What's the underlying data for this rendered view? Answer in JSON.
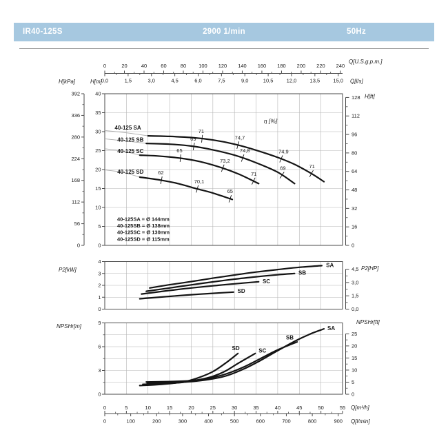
{
  "header": {
    "model": "IR40-125S",
    "speed": "2900 1/min",
    "frequency": "50Hz",
    "bar_color": "#a6c8e0",
    "text_color": "#ffffff"
  },
  "chart_data": [
    {
      "id": "head",
      "type": "line",
      "xlim_m3h": [
        0,
        55
      ],
      "ylim_m": [
        0,
        40
      ],
      "grid": "on",
      "annotation": {
        "text": "η [%]",
        "q": 36.8,
        "v": 32.7
      },
      "axes": {
        "top": [
          {
            "id": "gpm",
            "unit": "Q[U.S.g.p.m.]",
            "tick_values": [
              0,
              20,
              40,
              60,
              80,
              100,
              120,
              140,
              160,
              180,
              200,
              220,
              240
            ],
            "tick_labels": [
              "0",
              "20",
              "40",
              "60",
              "80",
              "100",
              "120",
              "140",
              "160",
              "180",
              "200",
              "220",
              "240"
            ]
          },
          {
            "id": "ls",
            "unit": "Q[l/s]",
            "tick_values": [
              0,
              1.5,
              3,
              4.5,
              6,
              7.5,
              9,
              10.5,
              12,
              13.5,
              15
            ],
            "tick_labels": [
              "0,0",
              "1,5",
              "3,0",
              "4,5",
              "6,0",
              "7,5",
              "9,0",
              "10,5",
              "12,0",
              "13,5",
              "15,0"
            ]
          }
        ],
        "left": [
          {
            "id": "kpa",
            "unit": "H[kPa]",
            "tick_values": [
              392,
              336,
              280,
              224,
              168,
              112,
              56,
              0
            ],
            "tick_labels": [
              "392",
              "336",
              "280",
              "224",
              "168",
              "112",
              "56",
              "0"
            ]
          },
          {
            "id": "hm",
            "unit": "H[m]",
            "tick_values": [
              40,
              35,
              30,
              25,
              20,
              15,
              10,
              5,
              0
            ],
            "tick_labels": [
              "40",
              "35",
              "30",
              "25",
              "20",
              "15",
              "10",
              "5",
              "0"
            ]
          }
        ],
        "right": [
          {
            "id": "hft",
            "unit": "H[ft]",
            "tick_values": [
              128,
              112,
              96,
              80,
              64,
              48,
              32,
              16,
              0
            ],
            "tick_labels": [
              "128",
              "112",
              "96",
              "80",
              "64",
              "48",
              "32",
              "16",
              "0"
            ]
          }
        ]
      },
      "series": [
        {
          "name": "40-125 SA",
          "name_label": {
            "q": 2.3,
            "v": 31.0
          },
          "lead_in": [
            [
              0,
              30.3
            ],
            [
              5,
              29.7
            ],
            [
              10,
              28.9
            ]
          ],
          "points": [
            [
              10,
              28.9
            ],
            [
              15,
              28.75
            ],
            [
              20,
              28.45
            ],
            [
              25,
              27.8
            ],
            [
              30,
              26.7
            ],
            [
              35,
              25.1
            ],
            [
              40,
              23.2
            ],
            [
              44,
              21.3
            ],
            [
              48,
              18.8
            ],
            [
              50.7,
              16.8
            ]
          ],
          "eff": [
            {
              "q": 22.5,
              "label": "71"
            },
            {
              "q": 30.8,
              "label": "74,7"
            },
            {
              "q": 40.8,
              "label": "74,9"
            },
            {
              "q": 47.8,
              "label": "71"
            }
          ]
        },
        {
          "name": "40-125 SB",
          "name_label": {
            "q": 2.9,
            "v": 27.8
          },
          "lead_in": [
            [
              0,
              28.1
            ],
            [
              5,
              27.5
            ],
            [
              9.6,
              26.9
            ]
          ],
          "points": [
            [
              9.6,
              26.9
            ],
            [
              15,
              26.7
            ],
            [
              20,
              26.2
            ],
            [
              25,
              25.2
            ],
            [
              30,
              23.8
            ],
            [
              35,
              21.8
            ],
            [
              40,
              19.3
            ],
            [
              43.9,
              16.3
            ]
          ],
          "eff": [
            {
              "q": 20.6,
              "label": "69"
            },
            {
              "q": 31.9,
              "label": "74,8"
            },
            {
              "q": 41.0,
              "label": "69"
            }
          ]
        },
        {
          "name": "40-125 SC",
          "name_label": {
            "q": 2.9,
            "v": 24.8
          },
          "lead_in": [
            [
              0,
              25.5
            ],
            [
              4,
              24.9
            ],
            [
              8.1,
              23.8
            ]
          ],
          "points": [
            [
              8.1,
              23.8
            ],
            [
              12,
              23.6
            ],
            [
              17.5,
              23.0
            ],
            [
              22,
              22.1
            ],
            [
              27,
              20.5
            ],
            [
              31,
              18.8
            ],
            [
              35.6,
              16.3
            ]
          ],
          "eff": [
            {
              "q": 17.5,
              "label": "65"
            },
            {
              "q": 27.3,
              "label": "73,2"
            },
            {
              "q": 34.4,
              "label": "71"
            }
          ]
        },
        {
          "name": "40-125 SD",
          "name_label": {
            "q": 2.9,
            "v": 19.4
          },
          "lead_in": [
            [
              0,
              19.9
            ],
            [
              4,
              19.3
            ],
            [
              8.1,
              18.0
            ]
          ],
          "points": [
            [
              8.1,
              18.0
            ],
            [
              13,
              17.2
            ],
            [
              17,
              16.3
            ],
            [
              21.4,
              14.9
            ],
            [
              25,
              13.8
            ],
            [
              29.5,
              12.1
            ]
          ],
          "eff": [
            {
              "q": 13.1,
              "label": "62"
            },
            {
              "q": 21.4,
              "label": "70,1"
            },
            {
              "q": 29.0,
              "label": "65"
            }
          ]
        }
      ],
      "legend": [
        "40-125SA = Ø 144mm",
        "40-125SB = Ø 138mm",
        "40-125SC = Ø 130mm",
        "40-125SD = Ø 115mm"
      ]
    },
    {
      "id": "power",
      "type": "line",
      "xlim_m3h": [
        0,
        55
      ],
      "ylim_kw": [
        0,
        4
      ],
      "grid": "on",
      "axes": {
        "left": [
          {
            "id": "kw",
            "unit": "P2[kW]",
            "tick_values": [
              4,
              3,
              2,
              1,
              0
            ],
            "tick_labels": [
              "4",
              "3",
              "2",
              "1",
              "0"
            ]
          }
        ],
        "right": [
          {
            "id": "hp",
            "unit": "P2[HP]",
            "tick_values": [
              4.5,
              3,
              1.5,
              0
            ],
            "tick_labels": [
              "4,5",
              "3,0",
              "1,5",
              "0,0"
            ]
          }
        ]
      },
      "series": [
        {
          "name": "SA",
          "name_label": {
            "q": 51.2,
            "v": 3.67,
            "anchor": "start"
          },
          "points": [
            [
              10.4,
              1.78
            ],
            [
              15,
              2.05
            ],
            [
              20,
              2.32
            ],
            [
              25,
              2.6
            ],
            [
              30,
              2.87
            ],
            [
              35,
              3.12
            ],
            [
              40,
              3.33
            ],
            [
              45,
              3.52
            ],
            [
              50.2,
              3.66
            ]
          ]
        },
        {
          "name": "SB",
          "name_label": {
            "q": 44.8,
            "v": 3.03,
            "anchor": "start"
          },
          "points": [
            [
              9.6,
              1.5
            ],
            [
              15,
              1.78
            ],
            [
              20,
              2.04
            ],
            [
              25,
              2.29
            ],
            [
              30,
              2.52
            ],
            [
              35,
              2.72
            ],
            [
              40,
              2.89
            ],
            [
              43.9,
              3.0
            ]
          ]
        },
        {
          "name": "SC",
          "name_label": {
            "q": 36.5,
            "v": 2.33,
            "anchor": "start"
          },
          "points": [
            [
              8.5,
              1.27
            ],
            [
              15,
              1.57
            ],
            [
              20,
              1.78
            ],
            [
              25,
              1.96
            ],
            [
              30,
              2.13
            ],
            [
              35.6,
              2.3
            ]
          ]
        },
        {
          "name": "SD",
          "name_label": {
            "q": 30.7,
            "v": 1.5,
            "anchor": "start"
          },
          "points": [
            [
              8.1,
              0.87
            ],
            [
              15,
              1.07
            ],
            [
              20,
              1.21
            ],
            [
              25,
              1.33
            ],
            [
              29.8,
              1.43
            ]
          ]
        }
      ]
    },
    {
      "id": "npsh",
      "type": "line",
      "xlim_m3h": [
        0,
        55
      ],
      "ylim_m": [
        0,
        9
      ],
      "grid": "on",
      "axes": {
        "left": [
          {
            "id": "nm",
            "unit": "NPSHr[m]",
            "tick_values": [
              9,
              6,
              3,
              0
            ],
            "tick_labels": [
              "9",
              "6",
              "3",
              "0"
            ]
          }
        ],
        "right": [
          {
            "id": "nft",
            "unit": "NPSHr[ft]",
            "tick_values": [
              25,
              20,
              15,
              10,
              5,
              0
            ],
            "tick_labels": [
              "25",
              "20",
              "15",
              "10",
              "5",
              "0"
            ]
          }
        ],
        "bottom": [
          {
            "id": "m3h",
            "unit": "Q[m³/h]",
            "tick_values": [
              0,
              5,
              10,
              15,
              20,
              25,
              30,
              35,
              40,
              45,
              50,
              55
            ],
            "tick_labels": [
              "0",
              "5",
              "10",
              "15",
              "20",
              "25",
              "30",
              "35",
              "40",
              "45",
              "50",
              "55"
            ]
          },
          {
            "id": "lmin",
            "unit": "Q[l/min]",
            "tick_values": [
              0,
              100,
              200,
              300,
              400,
              500,
              600,
              700,
              800,
              900
            ],
            "tick_labels": [
              "0",
              "100",
              "200",
              "300",
              "400",
              "500",
              "600",
              "700",
              "800",
              "900"
            ]
          }
        ]
      },
      "series": [
        {
          "name": "SA",
          "name_label": {
            "q": 51.5,
            "v": 8.3,
            "anchor": "start"
          },
          "points": [
            [
              9.8,
              1.4
            ],
            [
              15,
              1.45
            ],
            [
              20,
              1.6
            ],
            [
              24,
              1.85
            ],
            [
              28,
              2.3
            ],
            [
              32,
              3.15
            ],
            [
              36,
              4.25
            ],
            [
              40,
              5.5
            ],
            [
              44,
              6.7
            ],
            [
              47.5,
              7.6
            ],
            [
              50.7,
              8.25
            ]
          ]
        },
        {
          "name": "SB",
          "name_label": {
            "q": 42.8,
            "v": 7.15,
            "anchor": "middle"
          },
          "points": [
            [
              9.6,
              1.55
            ],
            [
              15,
              1.6
            ],
            [
              20,
              1.72
            ],
            [
              24,
              2.0
            ],
            [
              28,
              2.55
            ],
            [
              32,
              3.4
            ],
            [
              36,
              4.5
            ],
            [
              40,
              5.6
            ],
            [
              44.5,
              6.6
            ]
          ]
        },
        {
          "name": "SC",
          "name_label": {
            "q": 35.6,
            "v": 5.5,
            "anchor": "start"
          },
          "points": [
            [
              8.8,
              1.25
            ],
            [
              14,
              1.35
            ],
            [
              18,
              1.5
            ],
            [
              22,
              1.85
            ],
            [
              25,
              2.25
            ],
            [
              28,
              2.95
            ],
            [
              31,
              3.95
            ],
            [
              34.8,
              5.15
            ]
          ]
        },
        {
          "name": "SD",
          "name_label": {
            "q": 30.3,
            "v": 5.8,
            "anchor": "middle"
          },
          "points": [
            [
              8.1,
              1.1
            ],
            [
              12,
              1.2
            ],
            [
              16,
              1.4
            ],
            [
              19,
              1.65
            ],
            [
              22,
              2.15
            ],
            [
              25,
              2.85
            ],
            [
              28,
              3.95
            ],
            [
              30.8,
              5.15
            ]
          ]
        }
      ]
    }
  ]
}
